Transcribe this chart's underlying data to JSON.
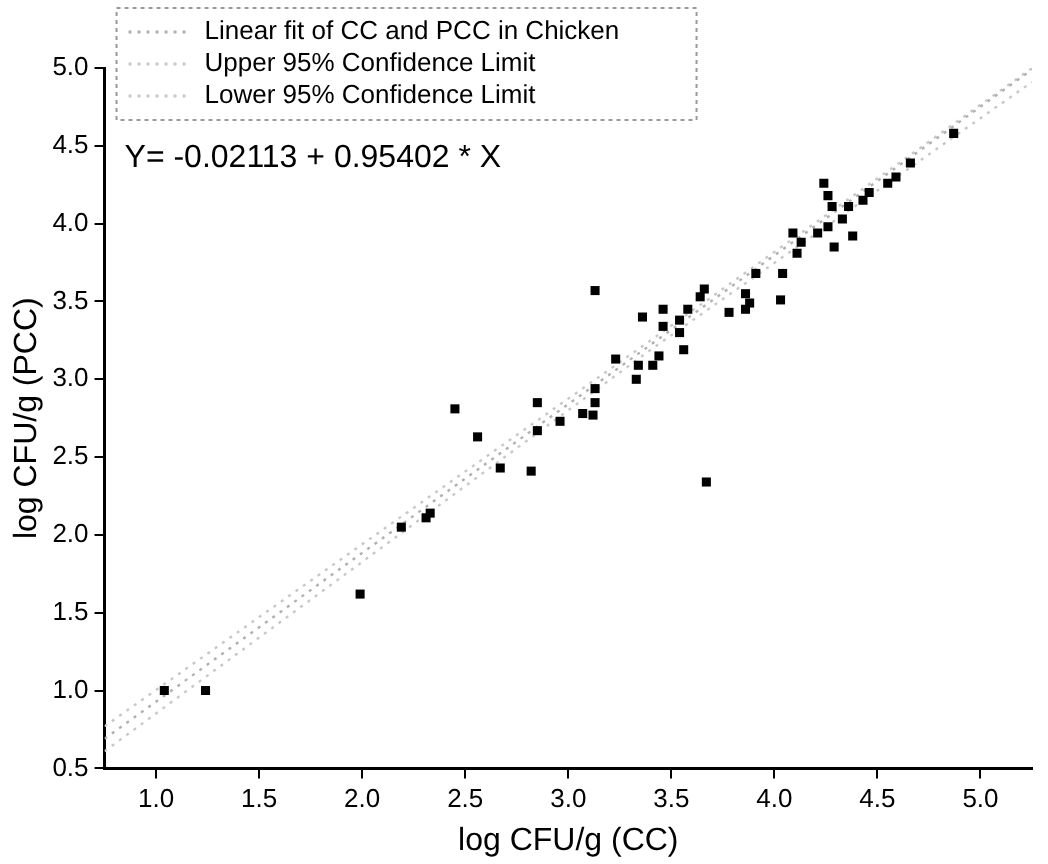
{
  "chart_data": {
    "type": "scatter",
    "xlabel": "log CFU/g (CC)",
    "ylabel": "log CFU/g (PCC)",
    "xlim": [
      0.75,
      5.25
    ],
    "ylim": [
      0.5,
      5.0
    ],
    "xticks": [
      {
        "value": 1,
        "label": "1.0"
      },
      1.5,
      {
        "value": 2,
        "label": "2.0"
      },
      2.5,
      {
        "value": 3,
        "label": "3.0"
      },
      3.5,
      {
        "value": 4,
        "label": "4.0"
      },
      4.5,
      {
        "value": 5,
        "label": "5.0"
      }
    ],
    "yticks": [
      0.5,
      {
        "value": 1,
        "label": "1.0"
      },
      1.5,
      {
        "value": 2,
        "label": "2.0"
      },
      2.5,
      {
        "value": 3,
        "label": "3.0"
      },
      3.5,
      {
        "value": 4,
        "label": "4.0"
      },
      4.5,
      {
        "value": 5,
        "label": "5.0"
      }
    ],
    "grid": false,
    "legend": "top left",
    "marker": "square",
    "annotations": [
      "Y= -0.02113 + 0.95402 * X"
    ],
    "series": [
      {
        "color": "#000000",
        "x": [
          1.04,
          1.24,
          1.99,
          2.19,
          2.31,
          2.33,
          2.45,
          2.56,
          2.67,
          2.82,
          2.85,
          2.85,
          2.96,
          3.07,
          3.12,
          3.13,
          3.67,
          4.87,
          4.66,
          4.59,
          4.55,
          4.46,
          4.43,
          4.36,
          4.33,
          4.38,
          4.24,
          4.26,
          4.28,
          4.26,
          4.29,
          4.21,
          4.13,
          4.11,
          4.09,
          4.04,
          4.03,
          3.91,
          3.86,
          3.88,
          3.86,
          3.78,
          3.66,
          3.64,
          3.58,
          3.54,
          3.54,
          3.56,
          3.46,
          3.46,
          3.36,
          3.44,
          3.41,
          3.34,
          3.33,
          3.23,
          3.13,
          3.13
        ],
        "values": [
          1.0,
          1.0,
          1.62,
          2.05,
          2.11,
          2.14,
          2.81,
          2.63,
          2.43,
          2.41,
          2.67,
          2.85,
          2.73,
          2.78,
          2.77,
          2.85,
          2.34,
          4.58,
          4.39,
          4.3,
          4.26,
          4.2,
          4.15,
          4.11,
          4.03,
          3.92,
          4.26,
          4.18,
          4.11,
          3.98,
          3.85,
          3.94,
          3.88,
          3.81,
          3.94,
          3.68,
          3.51,
          3.68,
          3.45,
          3.49,
          3.55,
          3.43,
          3.58,
          3.53,
          3.45,
          3.38,
          3.3,
          3.19,
          3.45,
          3.34,
          3.4,
          3.15,
          3.09,
          3.09,
          3.0,
          3.13,
          3.57,
          2.94
        ]
      },
      {
        "type": "line",
        "name": "Linear fit of CC and PCC in Chicken",
        "color": "#b0b0b0",
        "line_style": "dotted",
        "marker": "none",
        "x": [
          0.75,
          5.25
        ],
        "values": [
          0.69,
          4.99
        ]
      },
      {
        "type": "line",
        "name": "Upper 95% Confidence Limit",
        "color": "#c8c8c8",
        "line_style": "dotted",
        "marker": "none",
        "x": [
          0.75,
          3.4,
          5.25
        ],
        "values": [
          0.77,
          3.25,
          5.0
        ]
      },
      {
        "type": "line",
        "name": "Lower 95% Confidence Limit",
        "color": "#c8c8c8",
        "line_style": "dotted",
        "marker": "none",
        "x": [
          0.75,
          3.4,
          5.25
        ],
        "values": [
          0.61,
          3.19,
          4.91
        ]
      }
    ]
  }
}
